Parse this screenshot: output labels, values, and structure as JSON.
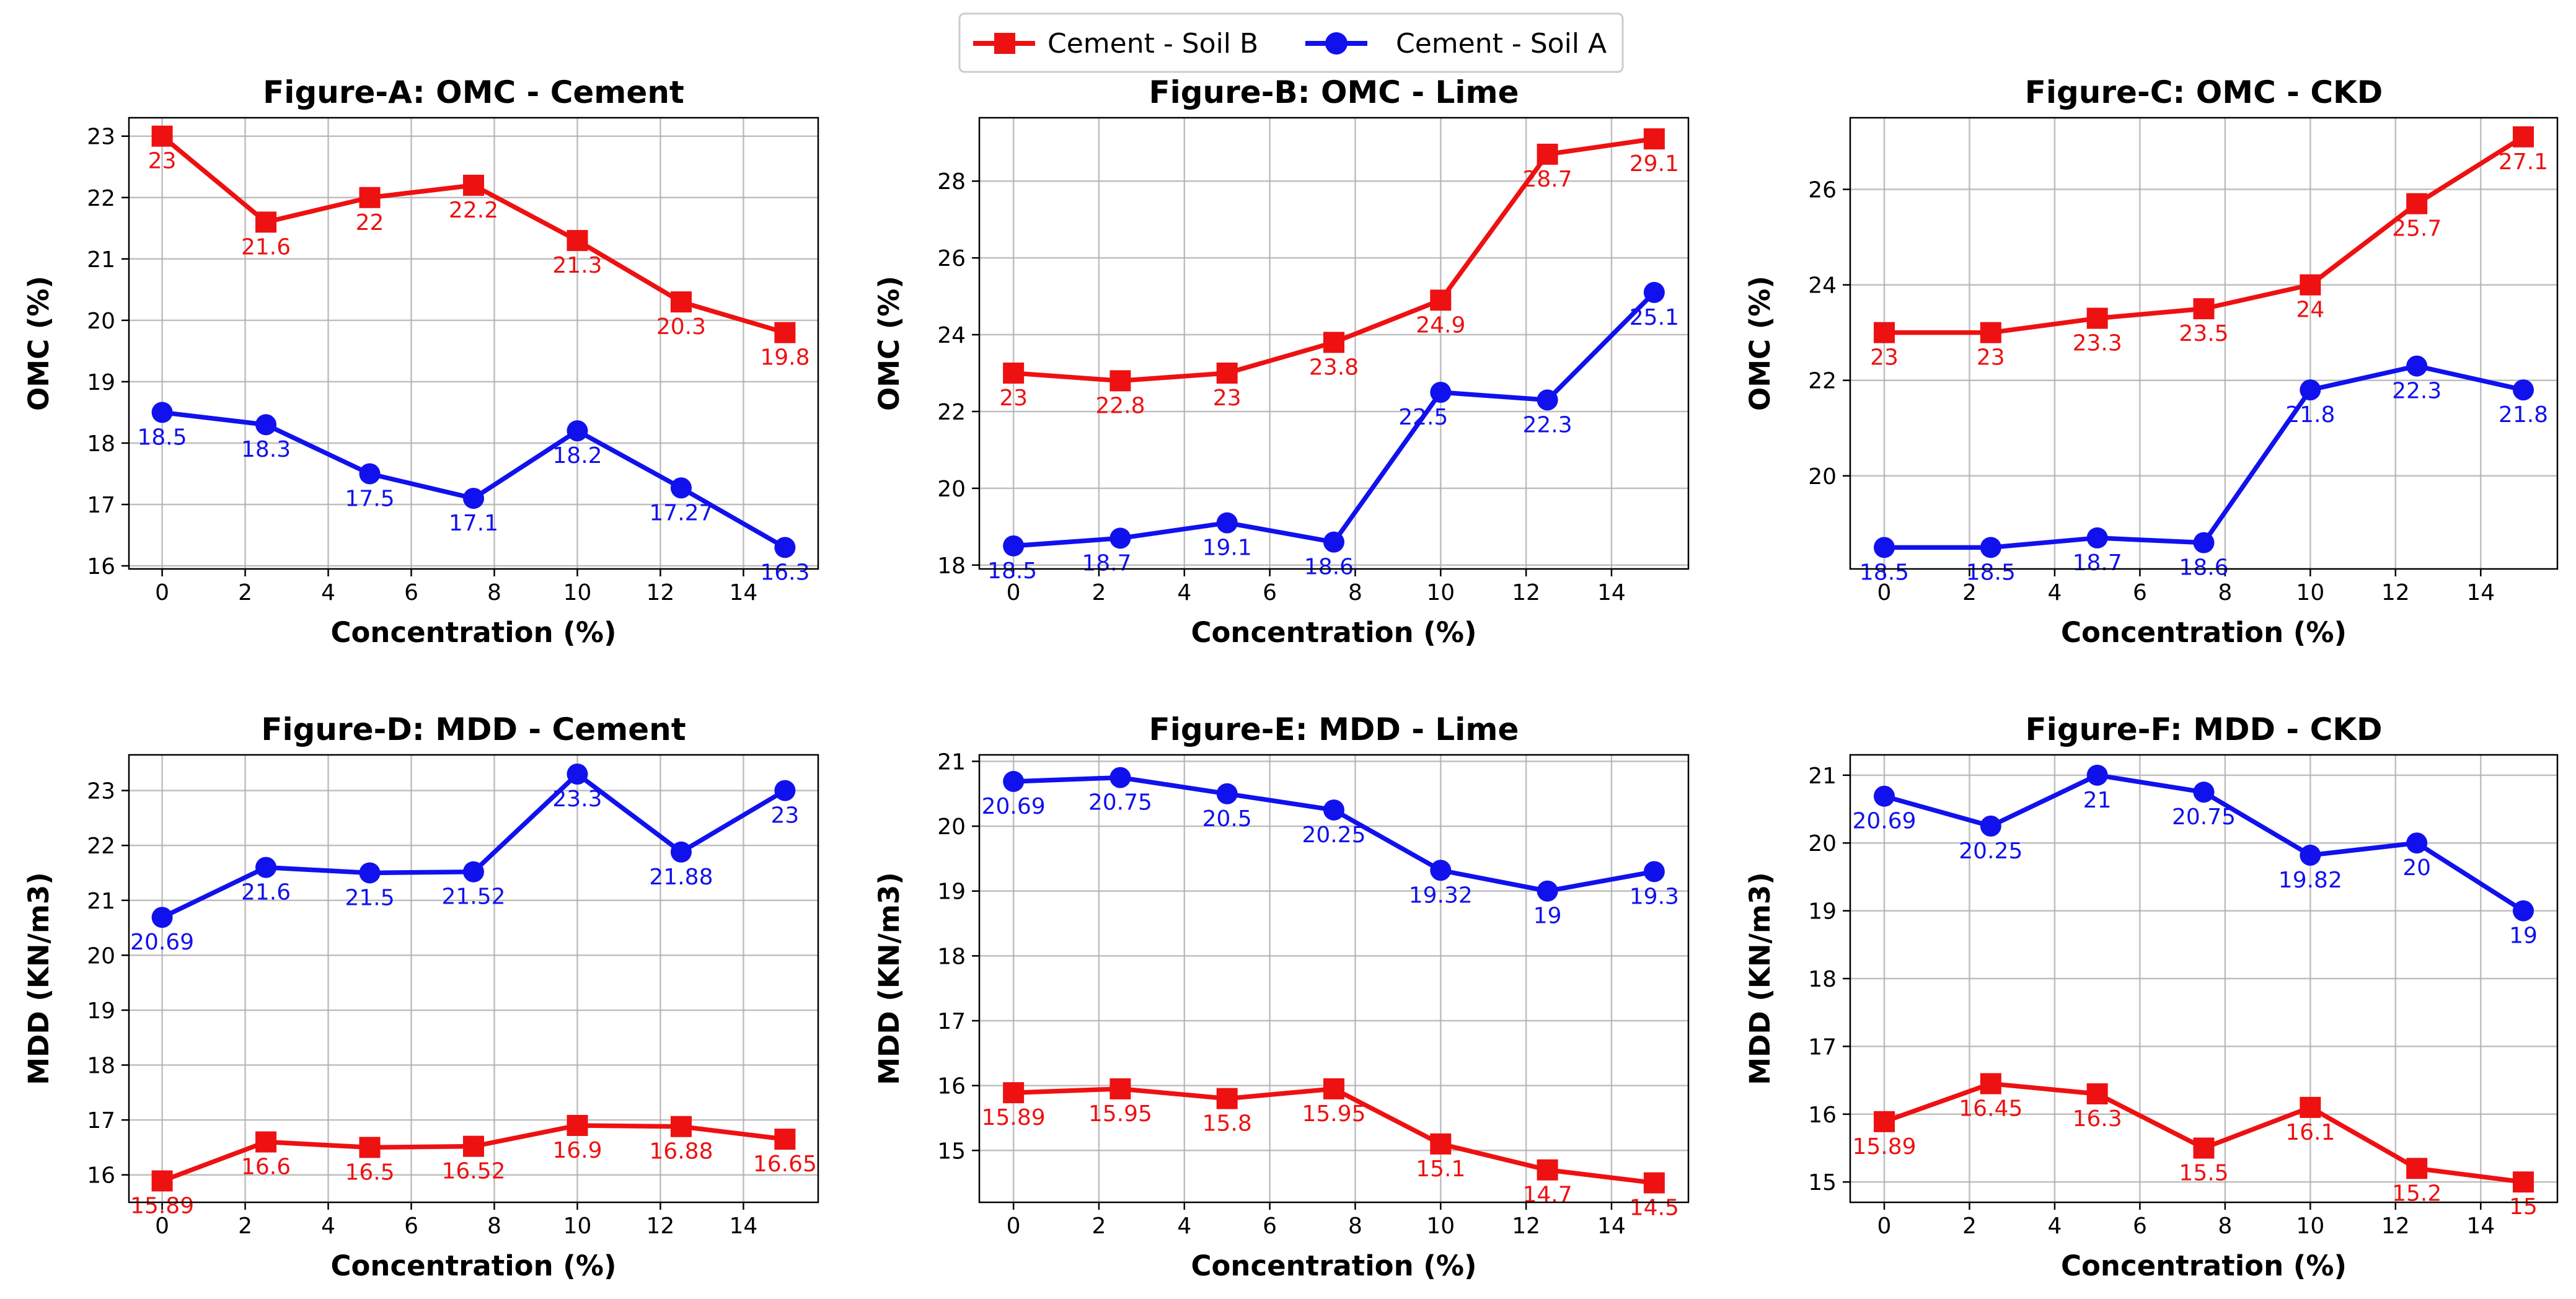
{
  "legend": {
    "items": [
      {
        "label": "Cement - Soil B",
        "color": "#ee1111",
        "marker": "square"
      },
      {
        "label": "Cement - Soil A",
        "color": "#1111ee",
        "marker": "circle"
      }
    ]
  },
  "chart_data": [
    {
      "type": "line",
      "title": "Figure-A: OMC - Cement",
      "xlabel": "Concentration (%)",
      "ylabel": "OMC (%)",
      "x": [
        0,
        2.5,
        5,
        7.5,
        10,
        12.5,
        15
      ],
      "xlim": [
        -0.8,
        15.8
      ],
      "ylim": [
        15.95,
        23.3
      ],
      "xticks": [
        "0",
        "2",
        "4",
        "6",
        "8",
        "10",
        "12",
        "14"
      ],
      "yticks": [
        "16",
        "17",
        "18",
        "19",
        "20",
        "21",
        "22",
        "23"
      ],
      "grid": true,
      "series": [
        {
          "name": "Cement - Soil B",
          "color": "#ee1111",
          "marker": "square",
          "values": [
            23,
            21.6,
            22,
            22.2,
            21.3,
            20.3,
            19.8
          ],
          "labels": [
            "23",
            "21.6",
            "22",
            "22.2",
            "21.3",
            "20.3",
            "19.8"
          ]
        },
        {
          "name": "Cement - Soil A",
          "color": "#1111ee",
          "marker": "circle",
          "values": [
            18.5,
            18.3,
            17.5,
            17.1,
            18.2,
            17.27,
            16.3
          ],
          "labels": [
            "18.5",
            "18.3",
            "17.5",
            "17.1",
            "18.2",
            "17.27",
            "16.3"
          ]
        }
      ]
    },
    {
      "type": "line",
      "title": "Figure-B: OMC - Lime",
      "xlabel": "Concentration (%)",
      "ylabel": "OMC (%)",
      "x": [
        0,
        2.5,
        5,
        7.5,
        10,
        12.5,
        15
      ],
      "xlim": [
        -0.8,
        15.8
      ],
      "ylim": [
        17.9,
        29.65
      ],
      "xticks": [
        "0",
        "2",
        "4",
        "6",
        "8",
        "10",
        "12",
        "14"
      ],
      "yticks": [
        "18",
        "20",
        "22",
        "24",
        "26",
        "28"
      ],
      "grid": true,
      "series": [
        {
          "name": "Cement - Soil B",
          "color": "#ee1111",
          "marker": "square",
          "values": [
            23,
            22.8,
            23,
            23.8,
            24.9,
            28.7,
            29.1
          ],
          "labels": [
            "23",
            "22.8",
            "23",
            "23.8",
            "24.9",
            "28.7",
            "29.1"
          ]
        },
        {
          "name": "Cement - Soil A",
          "color": "#1111ee",
          "marker": "circle",
          "values": [
            18.5,
            18.7,
            19.1,
            18.6,
            22.5,
            22.3,
            25.1
          ],
          "labels": [
            "18.5",
            "18.7",
            "19.1",
            "18.6",
            "22.5",
            "22.3",
            "25.1"
          ]
        }
      ]
    },
    {
      "type": "line",
      "title": "Figure-C: OMC - CKD",
      "xlabel": "Concentration (%)",
      "ylabel": "OMC (%)",
      "x": [
        0,
        2.5,
        5,
        7.5,
        10,
        12.5,
        15
      ],
      "xlim": [
        -0.8,
        15.8
      ],
      "ylim": [
        18.05,
        27.5
      ],
      "xticks": [
        "0",
        "2",
        "4",
        "6",
        "8",
        "10",
        "12",
        "14"
      ],
      "yticks": [
        "20",
        "22",
        "24",
        "26"
      ],
      "grid": true,
      "series": [
        {
          "name": "Cement - Soil B",
          "color": "#ee1111",
          "marker": "square",
          "values": [
            23,
            23,
            23.3,
            23.5,
            24,
            25.7,
            27.1
          ],
          "labels": [
            "23",
            "23",
            "23.3",
            "23.5",
            "24",
            "25.7",
            "27.1"
          ]
        },
        {
          "name": "Cement - Soil A",
          "color": "#1111ee",
          "marker": "circle",
          "values": [
            18.5,
            18.5,
            18.7,
            18.6,
            21.8,
            22.3,
            21.8
          ],
          "labels": [
            "18.5",
            "18.5",
            "18.7",
            "18.6",
            "21.8",
            "22.3",
            "21.8"
          ]
        }
      ]
    },
    {
      "type": "line",
      "title": "Figure-D: MDD - Cement",
      "xlabel": "Concentration (%)",
      "ylabel": "MDD (KN/m3)",
      "x": [
        0,
        2.5,
        5,
        7.5,
        10,
        12.5,
        15
      ],
      "xlim": [
        -0.8,
        15.8
      ],
      "ylim": [
        15.5,
        23.65
      ],
      "xticks": [
        "0",
        "2",
        "4",
        "6",
        "8",
        "10",
        "12",
        "14"
      ],
      "yticks": [
        "16",
        "17",
        "18",
        "19",
        "20",
        "21",
        "22",
        "23"
      ],
      "grid": true,
      "series": [
        {
          "name": "Cement - Soil B",
          "color": "#ee1111",
          "marker": "square",
          "values": [
            15.89,
            16.6,
            16.5,
            16.52,
            16.9,
            16.88,
            16.65
          ],
          "labels": [
            "15.89",
            "16.6",
            "16.5",
            "16.52",
            "16.9",
            "16.88",
            "16.65"
          ]
        },
        {
          "name": "Cement - Soil A",
          "color": "#1111ee",
          "marker": "circle",
          "values": [
            20.69,
            21.6,
            21.5,
            21.52,
            23.3,
            21.88,
            23
          ],
          "labels": [
            "20.69",
            "21.6",
            "21.5",
            "21.52",
            "23.3",
            "21.88",
            "23"
          ]
        }
      ]
    },
    {
      "type": "line",
      "title": "Figure-E: MDD - Lime",
      "xlabel": "Concentration (%)",
      "ylabel": "MDD (KN/m3)",
      "x": [
        0,
        2.5,
        5,
        7.5,
        10,
        12.5,
        15
      ],
      "xlim": [
        -0.8,
        15.8
      ],
      "ylim": [
        14.2,
        21.1
      ],
      "xticks": [
        "0",
        "2",
        "4",
        "6",
        "8",
        "10",
        "12",
        "14"
      ],
      "yticks": [
        "15",
        "16",
        "17",
        "18",
        "19",
        "20",
        "21"
      ],
      "grid": true,
      "series": [
        {
          "name": "Cement - Soil B",
          "color": "#ee1111",
          "marker": "square",
          "values": [
            15.89,
            15.95,
            15.8,
            15.95,
            15.1,
            14.7,
            14.5
          ],
          "labels": [
            "15.89",
            "15.95",
            "15.8",
            "15.95",
            "15.1",
            "14.7",
            "14.5"
          ]
        },
        {
          "name": "Cement - Soil A",
          "color": "#1111ee",
          "marker": "circle",
          "values": [
            20.69,
            20.75,
            20.5,
            20.25,
            19.32,
            19,
            19.3
          ],
          "labels": [
            "20.69",
            "20.75",
            "20.5",
            "20.25",
            "19.32",
            "19",
            "19.3"
          ]
        }
      ]
    },
    {
      "type": "line",
      "title": "Figure-F: MDD - CKD",
      "xlabel": "Concentration (%)",
      "ylabel": "MDD (KN/m3)",
      "x": [
        0,
        2.5,
        5,
        7.5,
        10,
        12.5,
        15
      ],
      "xlim": [
        -0.8,
        15.8
      ],
      "ylim": [
        14.7,
        21.3
      ],
      "xticks": [
        "0",
        "2",
        "4",
        "6",
        "8",
        "10",
        "12",
        "14"
      ],
      "yticks": [
        "15",
        "16",
        "17",
        "18",
        "19",
        "20",
        "21"
      ],
      "grid": true,
      "series": [
        {
          "name": "Cement - Soil B",
          "color": "#ee1111",
          "marker": "square",
          "values": [
            15.89,
            16.45,
            16.3,
            15.5,
            16.1,
            15.2,
            15
          ],
          "labels": [
            "15.89",
            "16.45",
            "16.3",
            "15.5",
            "16.1",
            "15.2",
            "15"
          ]
        },
        {
          "name": "Cement - Soil A",
          "color": "#1111ee",
          "marker": "circle",
          "values": [
            20.69,
            20.25,
            21,
            20.75,
            19.82,
            20,
            19
          ],
          "labels": [
            "20.69",
            "20.25",
            "21",
            "20.75",
            "19.82",
            "20",
            "19"
          ]
        }
      ]
    }
  ]
}
